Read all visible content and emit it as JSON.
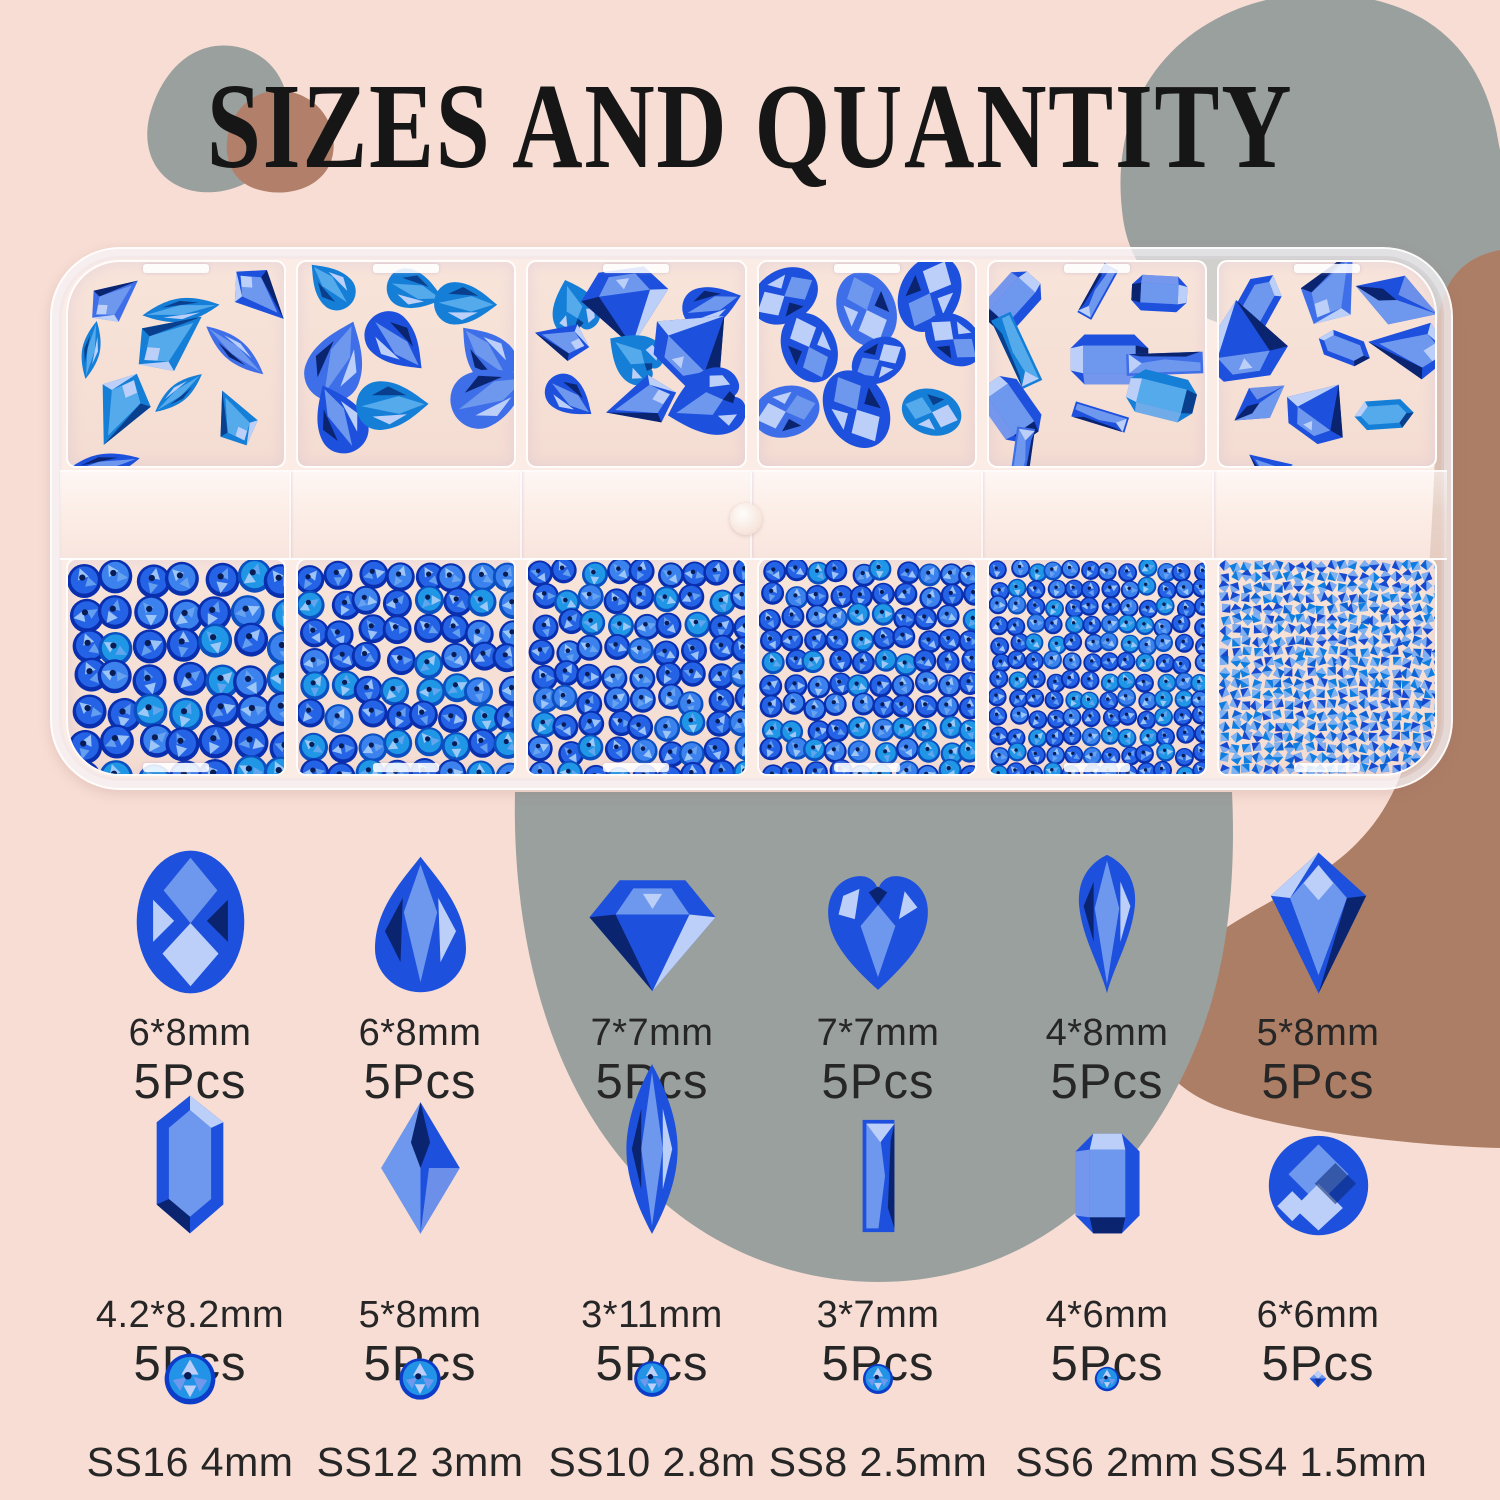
{
  "title": "SIZES AND QUANTITY",
  "palette": {
    "background": "#f7ddd4",
    "blob_gray": "#9aa09e",
    "blob_brown": "#b2806a",
    "blob_brown_large": "#ad7e66",
    "title_text": "#161616",
    "label_text": "#262626",
    "case_plastic": "rgba(255,248,244,0.55)",
    "compartment_fill": "#f4dcd2",
    "gem_royal": "#1d50dd",
    "gem_light": "#6e97ee",
    "gem_pale": "#bccff8",
    "gem_dark": "#0a2470",
    "gem_cyan": "#2293e6",
    "gem_rim": "#0d3dc8"
  },
  "case": {
    "top_compartments": [
      {
        "contents": "kite and marquise shaped gems",
        "shapes": [
          "kite",
          "marquise"
        ],
        "count": 10
      },
      {
        "contents": "teardrop pear gems",
        "shapes": [
          "pear"
        ],
        "count": 9
      },
      {
        "contents": "heart, diamond and mixed gems",
        "shapes": [
          "heart",
          "diamond",
          "pear",
          "kite"
        ],
        "count": 9
      },
      {
        "contents": "oval gems",
        "shapes": [
          "oval"
        ],
        "count": 9
      },
      {
        "contents": "baguette and emerald-cut gems",
        "shapes": [
          "octagon",
          "baguette"
        ],
        "count": 10
      },
      {
        "contents": "hexagon, kite and trapezoid gems",
        "shapes": [
          "hexagon",
          "kite",
          "rhombus",
          "diamond"
        ],
        "count": 10
      }
    ],
    "bottom_compartments": [
      {
        "contents": "SS16 round rhinestones",
        "stone": "round",
        "diameter": 34
      },
      {
        "contents": "SS12 round rhinestones",
        "stone": "round",
        "diameter": 29
      },
      {
        "contents": "SS10 round rhinestones",
        "stone": "round",
        "diameter": 26
      },
      {
        "contents": "SS8 round rhinestones",
        "stone": "round",
        "diameter": 23
      },
      {
        "contents": "SS6 round rhinestones",
        "stone": "round",
        "diameter": 19
      },
      {
        "contents": "SS4 pointed chaton crystals",
        "stone": "chaton",
        "diameter": 11
      }
    ]
  },
  "legend": {
    "rows": [
      {
        "items": [
          {
            "shape": "oval",
            "size": "6*8mm",
            "qty": "5Pcs"
          },
          {
            "shape": "pear",
            "size": "6*8mm",
            "qty": "5Pcs"
          },
          {
            "shape": "diamond",
            "size": "7*7mm",
            "qty": "5Pcs"
          },
          {
            "shape": "heart",
            "size": "7*7mm",
            "qty": "5Pcs"
          },
          {
            "shape": "drop",
            "size": "4*8mm",
            "qty": "5Pcs"
          },
          {
            "shape": "kite",
            "size": "5*8mm",
            "qty": "5Pcs"
          }
        ]
      },
      {
        "items": [
          {
            "shape": "hexagon",
            "size": "4.2*8.2mm",
            "qty": "5Pcs"
          },
          {
            "shape": "rhombus",
            "size": "5*8mm",
            "qty": "5Pcs"
          },
          {
            "shape": "marquise",
            "size": "3*11mm",
            "qty": "5Pcs"
          },
          {
            "shape": "baguette",
            "size": "3*7mm",
            "qty": "5Pcs"
          },
          {
            "shape": "octagon",
            "size": "4*6mm",
            "qty": "5Pcs"
          },
          {
            "shape": "roundcheck",
            "size": "6*6mm",
            "qty": "5Pcs"
          }
        ]
      },
      {
        "items": [
          {
            "shape": "flatround",
            "label": "SS16 4mm"
          },
          {
            "shape": "flatround",
            "label": "SS12 3mm"
          },
          {
            "shape": "flatround",
            "label": "SS10 2.8m"
          },
          {
            "shape": "flatround",
            "label": "SS8 2.5mm"
          },
          {
            "shape": "flatround",
            "label": "SS6 2mm"
          },
          {
            "shape": "chaton",
            "label": "SS4 1.5mm"
          }
        ]
      }
    ]
  }
}
